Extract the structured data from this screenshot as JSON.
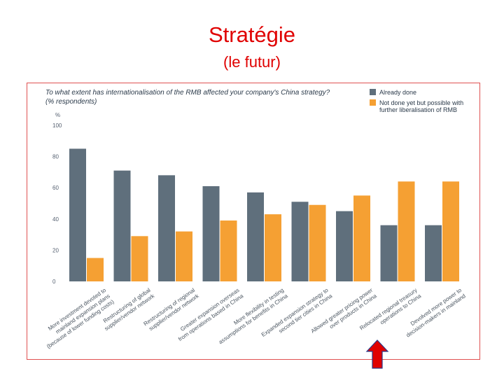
{
  "slide": {
    "title": "Stratégie",
    "subtitle": "(le futur)"
  },
  "colors": {
    "title": "#e00000",
    "frame_border": "#e05050",
    "arrow": "#e00000",
    "series_already": "#5f6f7c",
    "series_future": "#f5a033"
  },
  "chart_data": {
    "type": "bar",
    "title": "To what extent has internationalisation of the RMB affected your company's China strategy?",
    "subtitle": "(% respondents)",
    "ylabel": "%",
    "ylim": [
      0,
      100
    ],
    "yticks": [
      0,
      20,
      40,
      60,
      80,
      100
    ],
    "grid": false,
    "legend_position": "top-right",
    "categories": [
      [
        "More investment devoted to",
        "mainland expansion plans",
        "(because of lower funding costs)"
      ],
      [
        "Restructuring of global",
        "supplier/vendor network"
      ],
      [
        "Restructuring of regional",
        "supplier/vendor network"
      ],
      [
        "Greater expansion overseas",
        "from operations based in China"
      ],
      [
        "More flexibility in testing",
        "assumptions for benefits in China"
      ],
      [
        "Expanded expansion strategy to",
        "second tier cities in China"
      ],
      [
        "Allowed greater pricing power",
        "over products in China"
      ],
      [
        "Relocated regional treasury",
        "operations to China"
      ],
      [
        "Devolved more power to",
        "decision-makers in mainland"
      ]
    ],
    "series": [
      {
        "name": "Already done",
        "values": [
          85,
          71,
          68,
          61,
          57,
          51,
          45,
          36,
          36
        ]
      },
      {
        "name": "Not done yet but possible with further liberalisation of RMB",
        "values": [
          15,
          29,
          32,
          39,
          43,
          49,
          55,
          64,
          64
        ]
      }
    ],
    "legend_lines": [
      [
        "Already done"
      ],
      [
        "Not done yet but possible with",
        "further liberalisation of RMB"
      ]
    ]
  }
}
